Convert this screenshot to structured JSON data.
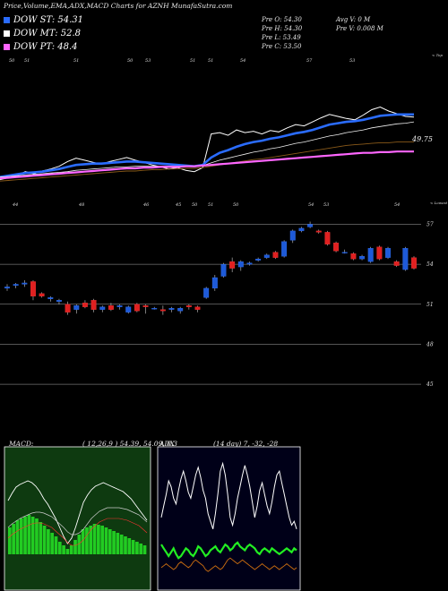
{
  "header": {
    "title": "Price,Volume,EMA,ADX,MACD Charts for AZNH MunafaSutra.com",
    "legend": [
      {
        "label": "DOW ST: 54.31",
        "color": "#2a6cff"
      },
      {
        "label": "DOW MT: 52.8",
        "color": "#ffffff"
      },
      {
        "label": "DOW PT: 48.4",
        "color": "#ff66ff"
      }
    ],
    "ohlc": {
      "open": "Pre   O: 54.30",
      "high": "Pre   H: 54.30",
      "low": "Pre   L: 53.49",
      "close": "Pre   C: 53.50"
    },
    "volume": {
      "avg": "Avg V: 0   M",
      "prev": "Pre   V: 0.008   M"
    }
  },
  "colors": {
    "up": "#1e5ad8",
    "down": "#e02020",
    "st": "#2a6cff",
    "mt": "#e0e0e0",
    "pt": "#ff66ff",
    "lt": "#8a5a1a",
    "macd_bar": "#22cc22",
    "adx_green": "#22ee22",
    "adx_orange": "#d07010"
  },
  "chart_data": [
    {
      "type": "line",
      "panel": "ema-price",
      "top_axis_label": "< Top",
      "top_tick_labels": [
        "50",
        "51",
        "51",
        "50",
        "53",
        "51",
        "51",
        "54",
        "57",
        "53"
      ],
      "last_value_label": "49.75",
      "bottom_axis_label": "< Lowest",
      "bottom_tick_labels": [
        "44",
        "48",
        "46",
        "45",
        "50",
        "51",
        "50",
        "54",
        "53",
        "54"
      ],
      "series": [
        {
          "values": [
            44.2,
            44.5,
            44.8,
            45.4,
            45.1,
            45.5,
            45.8,
            46.2,
            46.9,
            47.4,
            47.1,
            46.8,
            46.5,
            46.9,
            47.2,
            47.5,
            47.1,
            46.8,
            46.4,
            46.1,
            45.8,
            46.0,
            45.6,
            45.4,
            46.0,
            51.0,
            51.2,
            50.8,
            51.6,
            51.2,
            51.4,
            51.0,
            51.5,
            51.3,
            51.9,
            52.4,
            52.2,
            52.8,
            53.4,
            53.9,
            53.6,
            53.3,
            53.1,
            53.8,
            54.6,
            55.0,
            54.4,
            54.0,
            53.6,
            53.5
          ]
        },
        {
          "values": [
            44.6,
            44.8,
            45.0,
            45.2,
            45.3,
            45.4,
            45.6,
            45.8,
            46.1,
            46.4,
            46.5,
            46.6,
            46.6,
            46.7,
            46.8,
            46.9,
            46.9,
            46.8,
            46.7,
            46.6,
            46.5,
            46.4,
            46.3,
            46.2,
            46.4,
            47.5,
            48.2,
            48.6,
            49.1,
            49.5,
            49.8,
            50.0,
            50.3,
            50.5,
            50.8,
            51.1,
            51.3,
            51.6,
            52.0,
            52.4,
            52.6,
            52.8,
            52.9,
            53.1,
            53.4,
            53.7,
            53.8,
            53.9,
            53.9,
            53.9
          ]
        },
        {
          "values": [
            44.6,
            44.7,
            44.8,
            44.9,
            45.0,
            45.1,
            45.2,
            45.3,
            45.4,
            45.6,
            45.7,
            45.8,
            45.9,
            46.0,
            46.1,
            46.1,
            46.2,
            46.2,
            46.2,
            46.2,
            46.2,
            46.2,
            46.2,
            46.2,
            46.3,
            46.7,
            47.1,
            47.4,
            47.7,
            48.0,
            48.3,
            48.5,
            48.8,
            49.0,
            49.3,
            49.6,
            49.8,
            50.1,
            50.4,
            50.7,
            50.9,
            51.2,
            51.4,
            51.6,
            51.9,
            52.1,
            52.3,
            52.5,
            52.6,
            52.8
          ]
        },
        {
          "values": [
            44.0,
            44.1,
            44.2,
            44.3,
            44.4,
            44.5,
            44.6,
            44.7,
            44.8,
            44.9,
            45.0,
            45.1,
            45.2,
            45.3,
            45.4,
            45.5,
            45.5,
            45.6,
            45.7,
            45.7,
            45.8,
            45.8,
            45.9,
            45.9,
            46.0,
            46.2,
            46.4,
            46.6,
            46.8,
            47.0,
            47.2,
            47.3,
            47.5,
            47.7,
            47.9,
            48.1,
            48.3,
            48.5,
            48.7,
            48.9,
            49.1,
            49.3,
            49.4,
            49.5,
            49.6,
            49.7,
            49.7,
            49.8,
            49.8,
            49.8
          ]
        },
        {
          "values": [
            44.4,
            44.5,
            44.6,
            44.7,
            44.8,
            44.9,
            45.0,
            45.1,
            45.2,
            45.3,
            45.4,
            45.5,
            45.6,
            45.7,
            45.8,
            45.9,
            45.9,
            46.0,
            46.0,
            46.1,
            46.1,
            46.1,
            46.2,
            46.2,
            46.3,
            46.4,
            46.5,
            46.6,
            46.7,
            46.8,
            46.9,
            47.0,
            47.1,
            47.2,
            47.3,
            47.4,
            47.5,
            47.6,
            47.7,
            47.8,
            47.9,
            48.0,
            48.1,
            48.2,
            48.2,
            48.3,
            48.3,
            48.4,
            48.4,
            48.4
          ]
        }
      ]
    },
    {
      "type": "candlestick",
      "panel": "price",
      "y_tick_labels": [
        "57",
        "54",
        "51",
        "48",
        "45"
      ],
      "y_ticks": [
        57,
        54,
        51,
        48,
        45
      ],
      "ylim": [
        44.2,
        57.5
      ],
      "candles": [
        [
          52.2,
          52.5,
          52.0,
          52.3
        ],
        [
          52.4,
          52.6,
          52.2,
          52.5
        ],
        [
          52.5,
          52.8,
          52.3,
          52.6
        ],
        [
          52.7,
          52.8,
          51.3,
          51.6
        ],
        [
          51.8,
          51.9,
          51.5,
          51.6
        ],
        [
          51.4,
          51.6,
          51.2,
          51.5
        ],
        [
          51.2,
          51.4,
          51.0,
          51.3
        ],
        [
          51.0,
          51.2,
          50.2,
          50.4
        ],
        [
          50.6,
          51.0,
          50.3,
          50.9
        ],
        [
          51.1,
          51.3,
          50.7,
          50.8
        ],
        [
          51.3,
          51.4,
          50.4,
          50.6
        ],
        [
          50.6,
          50.9,
          50.4,
          50.8
        ],
        [
          50.9,
          51.1,
          50.5,
          50.6
        ],
        [
          50.8,
          51.0,
          50.6,
          50.9
        ],
        [
          50.4,
          50.9,
          50.3,
          50.8
        ],
        [
          51.0,
          51.1,
          50.4,
          50.5
        ],
        [
          50.9,
          51.0,
          50.3,
          50.8
        ],
        [
          50.7,
          50.8,
          50.6,
          50.7
        ],
        [
          50.6,
          50.9,
          50.2,
          50.5
        ],
        [
          50.6,
          50.8,
          50.4,
          50.7
        ],
        [
          50.5,
          50.8,
          50.3,
          50.7
        ],
        [
          50.9,
          51.0,
          50.6,
          50.8
        ],
        [
          50.8,
          50.9,
          50.4,
          50.6
        ],
        [
          51.5,
          52.3,
          51.4,
          52.2
        ],
        [
          52.2,
          53.2,
          52.0,
          53.0
        ],
        [
          53.1,
          54.1,
          53.0,
          54.0
        ],
        [
          54.2,
          54.5,
          53.4,
          53.7
        ],
        [
          53.8,
          54.3,
          53.5,
          54.2
        ],
        [
          54.0,
          54.2,
          53.9,
          54.1
        ],
        [
          54.3,
          54.5,
          54.2,
          54.4
        ],
        [
          54.5,
          54.8,
          54.4,
          54.7
        ],
        [
          54.9,
          55.0,
          54.4,
          54.5
        ],
        [
          54.6,
          55.8,
          54.5,
          55.7
        ],
        [
          55.8,
          56.6,
          55.6,
          56.5
        ],
        [
          56.5,
          56.8,
          56.4,
          56.7
        ],
        [
          56.8,
          57.2,
          56.7,
          57.0
        ],
        [
          56.5,
          56.6,
          56.3,
          56.4
        ],
        [
          56.4,
          56.5,
          55.4,
          55.5
        ],
        [
          55.6,
          55.7,
          54.9,
          55.0
        ],
        [
          54.9,
          55.1,
          54.8,
          54.9
        ],
        [
          54.8,
          54.9,
          54.3,
          54.4
        ],
        [
          54.4,
          54.7,
          54.3,
          54.6
        ],
        [
          54.2,
          55.3,
          54.1,
          55.2
        ],
        [
          55.3,
          55.4,
          54.3,
          54.4
        ],
        [
          54.5,
          55.3,
          54.4,
          55.2
        ],
        [
          54.2,
          54.3,
          53.8,
          53.9
        ],
        [
          53.6,
          55.3,
          53.5,
          55.2
        ],
        [
          54.5,
          54.6,
          53.6,
          53.7
        ]
      ]
    },
    {
      "type": "bar",
      "panel": "macd",
      "title": "MACD:",
      "readout": "( 12,26,9 ) 54.39, 54.09, 0.3",
      "values": [
        0.3,
        0.34,
        0.38,
        0.4,
        0.42,
        0.44,
        0.42,
        0.4,
        0.36,
        0.32,
        0.28,
        0.24,
        0.2,
        0.14,
        0.1,
        0.06,
        0.1,
        0.16,
        0.22,
        0.28,
        0.3,
        0.32,
        0.34,
        0.33,
        0.32,
        0.3,
        0.28,
        0.26,
        0.24,
        0.22,
        0.2,
        0.18,
        0.16,
        0.14,
        0.12,
        0.1
      ],
      "macd_line": [
        0.6,
        0.68,
        0.75,
        0.78,
        0.8,
        0.82,
        0.8,
        0.76,
        0.7,
        0.62,
        0.56,
        0.48,
        0.4,
        0.3,
        0.2,
        0.12,
        0.18,
        0.3,
        0.44,
        0.58,
        0.66,
        0.72,
        0.76,
        0.78,
        0.8,
        0.78,
        0.76,
        0.74,
        0.72,
        0.7,
        0.66,
        0.62,
        0.56,
        0.5,
        0.44,
        0.38
      ],
      "signal_line": [
        0.3,
        0.34,
        0.37,
        0.4,
        0.42,
        0.44,
        0.46,
        0.47,
        0.47,
        0.46,
        0.44,
        0.42,
        0.38,
        0.34,
        0.3,
        0.25,
        0.22,
        0.22,
        0.24,
        0.28,
        0.34,
        0.4,
        0.44,
        0.48,
        0.5,
        0.52,
        0.52,
        0.52,
        0.52,
        0.51,
        0.5,
        0.48,
        0.46,
        0.44,
        0.4,
        0.36
      ],
      "ylim": [
        -0.4,
        1.2
      ]
    },
    {
      "type": "line",
      "panel": "adx",
      "title": "ADX",
      "readout": "(14  day) 7, -32, -28",
      "series": [
        {
          "values": [
            28,
            34,
            40,
            47,
            44,
            38,
            35,
            42,
            48,
            52,
            47,
            41,
            38,
            44,
            50,
            54,
            49,
            42,
            38,
            30,
            26,
            22,
            30,
            40,
            52,
            56,
            50,
            40,
            28,
            24,
            30,
            38,
            44,
            50,
            55,
            50,
            44,
            36,
            28,
            34,
            42,
            46,
            40,
            34,
            30,
            36,
            44,
            50,
            52,
            46,
            40,
            34,
            28,
            24,
            26,
            22
          ]
        },
        {
          "values": [
            14,
            12,
            10,
            8,
            10,
            12,
            9,
            7,
            8,
            10,
            12,
            11,
            9,
            8,
            10,
            13,
            12,
            10,
            8,
            9,
            11,
            12,
            13,
            11,
            10,
            12,
            14,
            13,
            11,
            12,
            14,
            15,
            13,
            12,
            11,
            13,
            14,
            13,
            12,
            10,
            9,
            11,
            12,
            11,
            10,
            12,
            11,
            10,
            9,
            10,
            11,
            12,
            11,
            10,
            12,
            11
          ]
        },
        {
          "values": [
            2,
            3,
            4,
            3,
            2,
            1,
            2,
            4,
            5,
            4,
            3,
            2,
            3,
            5,
            6,
            5,
            4,
            3,
            1,
            0,
            1,
            2,
            3,
            2,
            1,
            2,
            4,
            6,
            7,
            6,
            5,
            4,
            5,
            6,
            5,
            4,
            3,
            2,
            1,
            2,
            3,
            4,
            3,
            2,
            1,
            2,
            3,
            2,
            1,
            2,
            3,
            4,
            3,
            2,
            1,
            2
          ]
        }
      ],
      "ylim": [
        -5,
        60
      ]
    }
  ]
}
